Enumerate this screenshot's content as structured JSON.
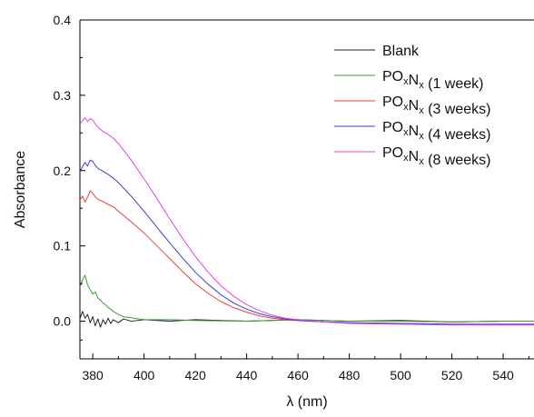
{
  "chart_data": {
    "type": "line",
    "xlabel": "λ (nm)",
    "ylabel": "Absorbance",
    "xlim": [
      375,
      552
    ],
    "ylim": [
      -0.05,
      0.4
    ],
    "xticks": [
      380,
      400,
      420,
      440,
      460,
      480,
      500,
      520,
      540
    ],
    "yticks": [
      0.0,
      0.1,
      0.2,
      0.3,
      0.4
    ],
    "ytick_labels": [
      "0.0",
      "0.1",
      "0.2",
      "0.3",
      "0.4"
    ],
    "grid": false,
    "legend_position": "top-right",
    "series": [
      {
        "name": "Blank",
        "legend": {
          "base": "Blank",
          "sub1": "",
          "mid": "",
          "sub2": "",
          "tail": ""
        },
        "color": "#222222",
        "x": [
          375,
          376,
          377,
          378,
          379,
          380,
          381,
          382,
          383,
          384,
          385,
          386,
          387,
          388,
          390,
          392,
          395,
          400,
          410,
          420,
          440,
          460,
          480,
          500,
          520,
          540,
          552
        ],
        "y": [
          0.003,
          0.013,
          0.004,
          0.009,
          -0.002,
          0.006,
          -0.006,
          0.003,
          -0.008,
          0.002,
          -0.004,
          0.004,
          -0.003,
          0.002,
          -0.002,
          0.003,
          0.0,
          0.002,
          0.0,
          0.002,
          0.0,
          0.002,
          0.0,
          0.001,
          -0.001,
          0.0,
          0.0
        ]
      },
      {
        "name": "POxNx (1 week)",
        "legend": {
          "base": "PO",
          "sub1": "x",
          "mid": "N",
          "sub2": "x",
          "tail": " (1 week)"
        },
        "color": "#3a9a3a",
        "x": [
          375,
          376,
          377,
          378,
          379,
          380,
          381,
          382,
          383,
          384,
          385,
          386,
          387,
          388,
          389,
          390,
          392,
          394,
          396,
          400,
          410,
          420,
          440,
          460,
          480,
          500,
          520,
          540,
          552
        ],
        "y": [
          0.045,
          0.055,
          0.061,
          0.048,
          0.042,
          0.036,
          0.039,
          0.031,
          0.028,
          0.024,
          0.022,
          0.018,
          0.016,
          0.013,
          0.011,
          0.009,
          0.006,
          0.005,
          0.004,
          0.002,
          0.002,
          0.001,
          0.0,
          0.002,
          0.0,
          0.0,
          -0.001,
          0.0,
          0.0
        ]
      },
      {
        "name": "POxNx (3 weeks)",
        "legend": {
          "base": "PO",
          "sub1": "x",
          "mid": "N",
          "sub2": "x",
          "tail": " (3 weeks)"
        },
        "color": "#e8403a",
        "x": [
          375,
          376,
          377,
          378,
          379,
          380,
          381,
          382,
          384,
          386,
          388,
          390,
          395,
          400,
          405,
          410,
          415,
          420,
          425,
          430,
          435,
          440,
          445,
          450,
          455,
          460,
          470,
          480,
          500,
          520,
          540,
          552
        ],
        "y": [
          0.161,
          0.166,
          0.158,
          0.165,
          0.173,
          0.17,
          0.165,
          0.162,
          0.159,
          0.155,
          0.152,
          0.146,
          0.132,
          0.117,
          0.1,
          0.083,
          0.066,
          0.05,
          0.037,
          0.026,
          0.018,
          0.012,
          0.007,
          0.004,
          0.002,
          0.001,
          -0.001,
          -0.002,
          -0.003,
          -0.004,
          -0.004,
          -0.004
        ]
      },
      {
        "name": "POxNx (4 weeks)",
        "legend": {
          "base": "PO",
          "sub1": "x",
          "mid": "N",
          "sub2": "x",
          "tail": " (4 weeks)"
        },
        "color": "#2f3fe0",
        "x": [
          375,
          376,
          377,
          378,
          379,
          380,
          381,
          382,
          384,
          386,
          388,
          390,
          395,
          400,
          405,
          410,
          415,
          420,
          425,
          430,
          435,
          440,
          445,
          450,
          455,
          460,
          470,
          480,
          500,
          520,
          540,
          552
        ],
        "y": [
          0.199,
          0.205,
          0.211,
          0.206,
          0.214,
          0.212,
          0.207,
          0.203,
          0.199,
          0.195,
          0.19,
          0.184,
          0.166,
          0.146,
          0.125,
          0.104,
          0.084,
          0.065,
          0.049,
          0.035,
          0.024,
          0.016,
          0.01,
          0.006,
          0.003,
          0.001,
          -0.001,
          -0.002,
          -0.003,
          -0.004,
          -0.004,
          -0.004
        ]
      },
      {
        "name": "POxNx (8 weeks)",
        "legend": {
          "base": "PO",
          "sub1": "x",
          "mid": "N",
          "sub2": "x",
          "tail": " (8 weeks)"
        },
        "color": "#e83ce8",
        "x": [
          375,
          376,
          377,
          378,
          379,
          380,
          381,
          382,
          383,
          384,
          386,
          388,
          390,
          395,
          400,
          405,
          410,
          415,
          420,
          425,
          430,
          435,
          440,
          445,
          450,
          455,
          460,
          470,
          480,
          500,
          520,
          540,
          552
        ],
        "y": [
          0.262,
          0.266,
          0.27,
          0.265,
          0.269,
          0.267,
          0.262,
          0.258,
          0.255,
          0.252,
          0.248,
          0.243,
          0.236,
          0.214,
          0.189,
          0.163,
          0.136,
          0.11,
          0.086,
          0.065,
          0.047,
          0.033,
          0.022,
          0.014,
          0.008,
          0.004,
          0.002,
          -0.001,
          -0.003,
          -0.004,
          -0.005,
          -0.005,
          -0.005
        ]
      }
    ]
  }
}
